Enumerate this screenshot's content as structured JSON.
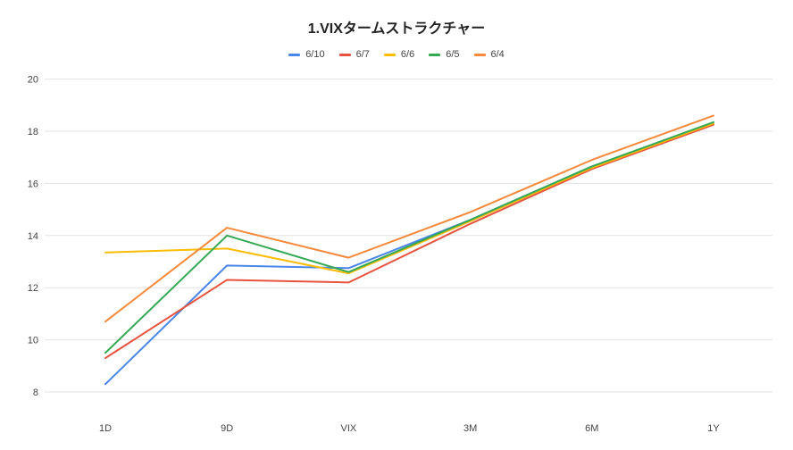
{
  "chart_data": {
    "type": "line",
    "title": "1.VIXタームストラクチャー",
    "xlabel": "",
    "ylabel": "",
    "categories": [
      "1D",
      "9D",
      "VIX",
      "3M",
      "6M",
      "1Y"
    ],
    "ylim": [
      7,
      20
    ],
    "yticks": [
      8,
      10,
      12,
      14,
      16,
      18,
      20
    ],
    "grid": true,
    "legend_position": "top",
    "series": [
      {
        "name": "6/10",
        "color": "#4a86e8",
        "values": [
          8.3,
          12.85,
          12.75,
          14.6,
          16.65,
          18.3
        ]
      },
      {
        "name": "6/7",
        "color": "#e8533f",
        "values": [
          9.3,
          12.3,
          12.2,
          14.45,
          16.55,
          18.25
        ]
      },
      {
        "name": "6/6",
        "color": "#fbbc04",
        "values": [
          13.35,
          13.5,
          12.55,
          14.55,
          16.6,
          18.3
        ]
      },
      {
        "name": "6/5",
        "color": "#34a853",
        "values": [
          9.5,
          14.0,
          12.6,
          14.6,
          16.65,
          18.35
        ]
      },
      {
        "name": "6/4",
        "color": "#f6893b",
        "values": [
          10.7,
          14.3,
          13.15,
          14.9,
          16.9,
          18.6
        ]
      }
    ]
  }
}
